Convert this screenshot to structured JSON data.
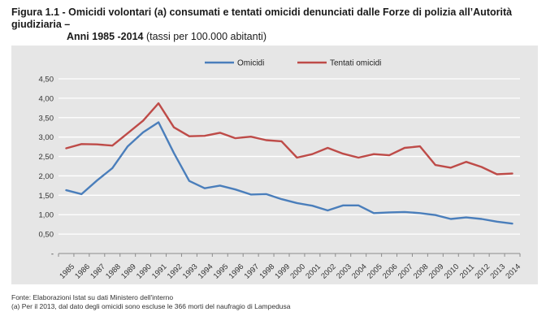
{
  "title": {
    "bold_line1": "Figura 1.1 - Omicidi volontari (a) consumati e tentati omicidi denunciati dalle Forze di polizia all’Autorità giudiziaria –",
    "bold_line2": "Anni 1985 -2014",
    "normal_line2": " (tassi per 100.000 abitanti)"
  },
  "notes": {
    "source": "Fonte: Elaborazioni Istat su dati Ministero dell'interno",
    "footnote": "(a) Per il 2013, dal dato degli omicidi sono escluse le 366 morti del naufragio di Lampedusa"
  },
  "chart_data": {
    "type": "line",
    "x": [
      "1985",
      "1986",
      "1987",
      "1988",
      "1989",
      "1990",
      "1991",
      "1992",
      "1993",
      "1994",
      "1995",
      "1996",
      "1997",
      "1998",
      "1999",
      "2000",
      "2001",
      "2002",
      "2003",
      "2004",
      "2005",
      "2006",
      "2007",
      "2008",
      "2009",
      "2010",
      "2011",
      "2012",
      "2013",
      "2014"
    ],
    "y_ticks": [
      "-",
      "0,50",
      "1,00",
      "1,50",
      "2,00",
      "2,50",
      "3,00",
      "3,50",
      "4,00",
      "4,50"
    ],
    "ylim": [
      0,
      4.5
    ],
    "grid": true,
    "legend_position": "top-center",
    "series": [
      {
        "name": "Omicidi",
        "color": "#4a7ebb",
        "values": [
          1.63,
          1.53,
          1.88,
          2.2,
          2.76,
          3.12,
          3.38,
          2.59,
          1.87,
          1.68,
          1.75,
          1.65,
          1.52,
          1.53,
          1.4,
          1.3,
          1.23,
          1.11,
          1.24,
          1.24,
          1.04,
          1.06,
          1.07,
          1.04,
          0.99,
          0.89,
          0.93,
          0.89,
          0.82,
          0.77
        ]
      },
      {
        "name": "Tentati omicidi",
        "color": "#be4b48",
        "values": [
          2.71,
          2.82,
          2.81,
          2.78,
          3.1,
          3.42,
          3.87,
          3.25,
          3.02,
          3.03,
          3.11,
          2.97,
          3.01,
          2.92,
          2.89,
          2.47,
          2.56,
          2.72,
          2.57,
          2.47,
          2.56,
          2.53,
          2.72,
          2.76,
          2.28,
          2.21,
          2.36,
          2.23,
          2.04,
          2.06
        ]
      }
    ]
  }
}
